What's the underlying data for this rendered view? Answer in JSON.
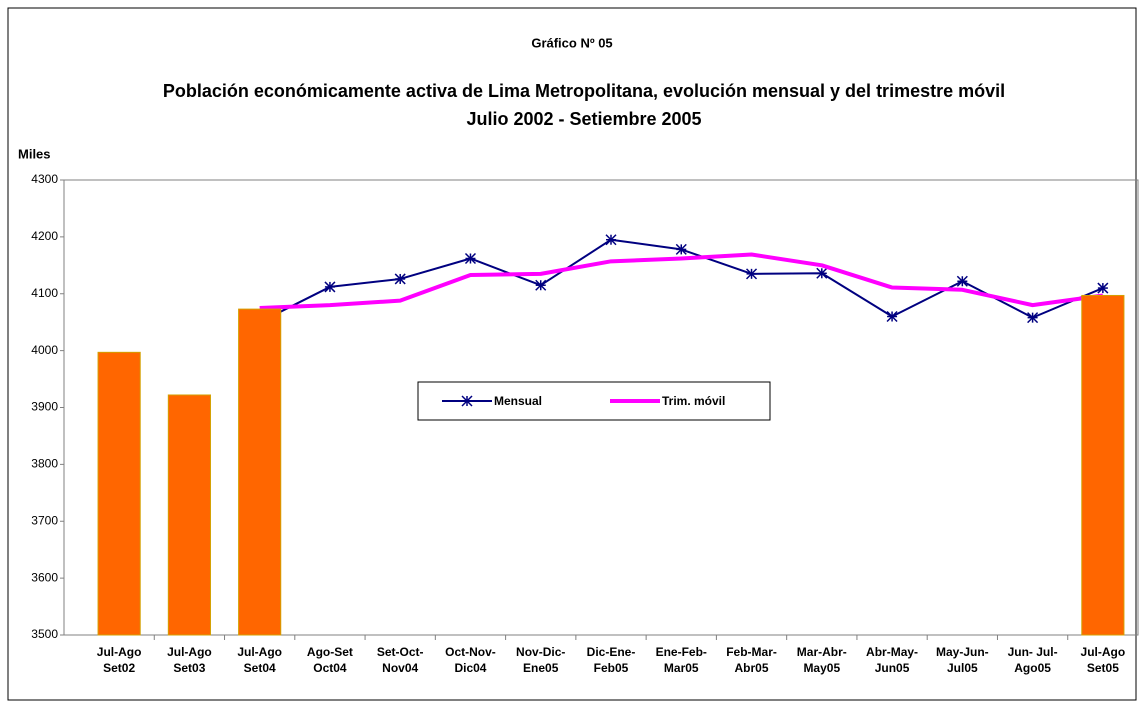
{
  "chart_data": {
    "type": "bar",
    "label": "Gráfico Nº 05",
    "title": "Población económicamente activa de Lima Metropolitana, evolución mensual y del  trimestre móvil",
    "subtitle": "Julio 2002 - Setiembre 2005",
    "y_label": "Miles",
    "categories": [
      [
        "Jul-Ago",
        "Set02"
      ],
      [
        "Jul-Ago",
        "Set03"
      ],
      [
        "Jul-Ago",
        "Set04"
      ],
      [
        "Ago-Set",
        "Oct04"
      ],
      [
        "Set-Oct-",
        "Nov04"
      ],
      [
        "Oct-Nov-",
        "Dic04"
      ],
      [
        "Nov-Dic-",
        "Ene05"
      ],
      [
        "Dic-Ene-",
        "Feb05"
      ],
      [
        "Ene-Feb-",
        "Mar05"
      ],
      [
        "Feb-Mar-",
        "Abr05"
      ],
      [
        "Mar-Abr-",
        "May05"
      ],
      [
        "Abr-May-",
        "Jun05"
      ],
      [
        "May-Jun-",
        "Jul05"
      ],
      [
        "Jun- Jul-",
        "Ago05"
      ],
      [
        "Jul-Ago",
        "Set05"
      ]
    ],
    "series": [
      {
        "type": "bar",
        "color": "#ff6600",
        "values": [
          3997,
          3922,
          4073,
          null,
          null,
          null,
          null,
          null,
          null,
          null,
          null,
          null,
          null,
          null,
          4097
        ]
      },
      {
        "type": "line",
        "name": "Mensual",
        "color": "#000080",
        "values": [
          null,
          null,
          4050,
          4112,
          4126,
          4162,
          4115,
          4195,
          4178,
          4135,
          4136,
          4060,
          4122,
          4058,
          4110
        ]
      },
      {
        "type": "line",
        "name": "Trim. móvil",
        "color": "#ff00ff",
        "values": [
          null,
          null,
          4075,
          4080,
          4088,
          4133,
          4135,
          4157,
          4162,
          4169,
          4150,
          4111,
          4107,
          4080,
          4097
        ]
      }
    ],
    "ylim": [
      3500,
      4300
    ],
    "yticks": [
      3500,
      3600,
      3700,
      3800,
      3900,
      4000,
      4100,
      4200,
      4300
    ],
    "grid": false,
    "legend": "center"
  }
}
